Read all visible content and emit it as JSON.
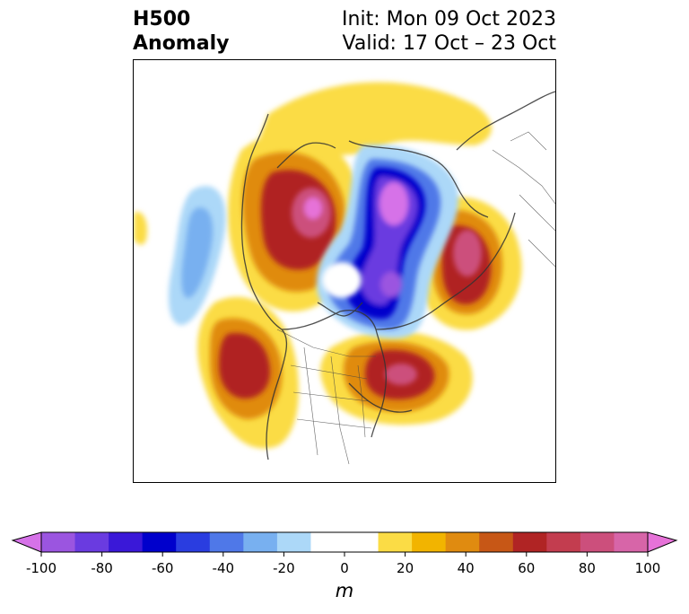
{
  "title": {
    "left_line1": "H500",
    "left_line2": "Anomaly",
    "right_line1": "Init: Mon 09 Oct 2023",
    "right_line2": "Valid: 17 Oct – 23 Oct"
  },
  "map": {
    "projection": "north-polar-stereographic",
    "field": "500 hPa geopotential height anomaly",
    "features": [
      {
        "name": "anomaly-high-northwest-canada",
        "sign": "positive",
        "peak_m": 90
      },
      {
        "name": "anomaly-high-northeast-pacific",
        "sign": "positive",
        "peak_m": 65
      },
      {
        "name": "anomaly-high-eastern-canada-greenland",
        "sign": "positive",
        "peak_m": 90
      },
      {
        "name": "anomaly-high-siberia",
        "sign": "positive",
        "peak_m": 80
      },
      {
        "name": "anomaly-low-arctic-pole",
        "sign": "negative",
        "peak_m": -100
      },
      {
        "name": "anomaly-low-north-atlantic",
        "sign": "negative",
        "peak_m": -40
      }
    ]
  },
  "colorbar": {
    "unit": "m",
    "min": -100,
    "max": 100,
    "step": 10,
    "tick_labels": [
      "-100",
      "-80",
      "-60",
      "-40",
      "-20",
      "0",
      "20",
      "40",
      "60",
      "80",
      "100"
    ],
    "colors": [
      "#d672e8",
      "#9b55e0",
      "#6a3be0",
      "#3a18d8",
      "#0000cc",
      "#2a3de0",
      "#4f78e8",
      "#78b0f0",
      "#acd8f8",
      "#ffffff",
      "#ffffff",
      "#fbdc45",
      "#f2b400",
      "#e08b10",
      "#c75716",
      "#b02424",
      "#c33d4f",
      "#cc4f7c",
      "#d765a8",
      "#e672d8"
    ]
  }
}
